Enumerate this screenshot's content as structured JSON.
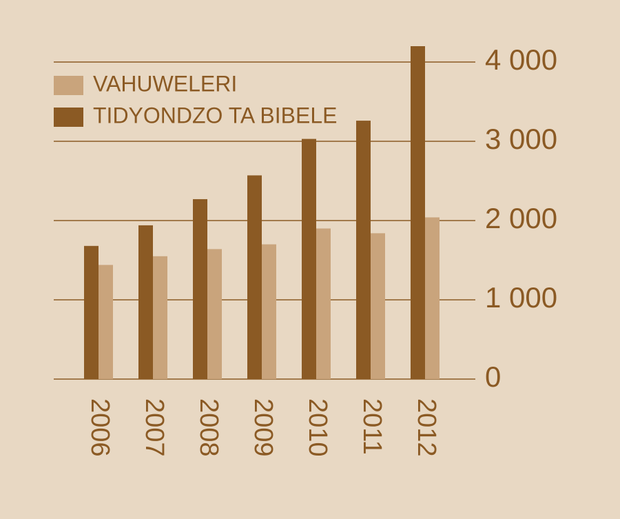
{
  "chart_data": {
    "type": "bar",
    "categories": [
      "2006",
      "2007",
      "2008",
      "2009",
      "2010",
      "2011",
      "2012"
    ],
    "series": [
      {
        "name": "VAHUWELERI",
        "color": "#c9a47c",
        "values": [
          1440,
          1550,
          1640,
          1700,
          1900,
          1840,
          2040
        ]
      },
      {
        "name": "TIDYONDZO TA BIBELE",
        "color": "#8b5a24",
        "values": [
          1680,
          1940,
          2270,
          2570,
          3030,
          3260,
          4200
        ]
      }
    ],
    "ylim": [
      0,
      4000
    ],
    "yticks": [
      0,
      {
        "value": 1000,
        "label": "1 000"
      },
      {
        "value": 2000,
        "label": "2 000"
      },
      {
        "value": 3000,
        "label": "3 000"
      },
      {
        "value": 4000,
        "label": "4 000"
      }
    ],
    "grid": true
  }
}
